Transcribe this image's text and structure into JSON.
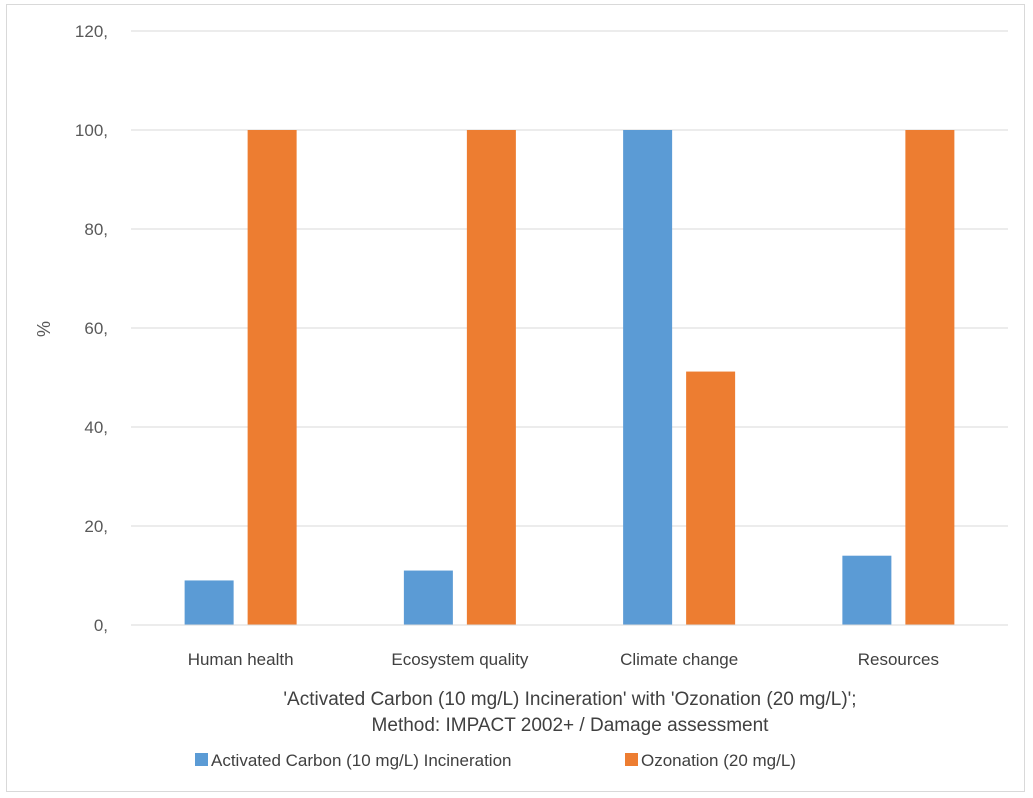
{
  "chart_data": {
    "type": "bar",
    "categories": [
      "Human health",
      "Ecosystem quality",
      "Climate change",
      "Resources"
    ],
    "series": [
      {
        "name": "Activated Carbon (10 mg/L) Incineration",
        "color": "#5b9bd5",
        "values": [
          9,
          11,
          100,
          14
        ]
      },
      {
        "name": "Ozonation (20 mg/L)",
        "color": "#ed7d31",
        "values": [
          100,
          100,
          51.2,
          100
        ]
      }
    ],
    "title": "",
    "xlabel_lines": [
      "'Activated Carbon (10 mg/L) Incineration' with 'Ozonation (20 mg/L)';",
      "Method: IMPACT 2002+ / Damage assessment"
    ],
    "ylabel": "%",
    "ylim": [
      0,
      120
    ],
    "yticks": [
      0,
      20,
      40,
      60,
      80,
      100,
      120
    ],
    "ytick_labels": [
      "0,",
      "20,",
      "40,",
      "60,",
      "80,",
      "100,",
      "120,"
    ],
    "grid": true,
    "legend_position": "bottom"
  }
}
